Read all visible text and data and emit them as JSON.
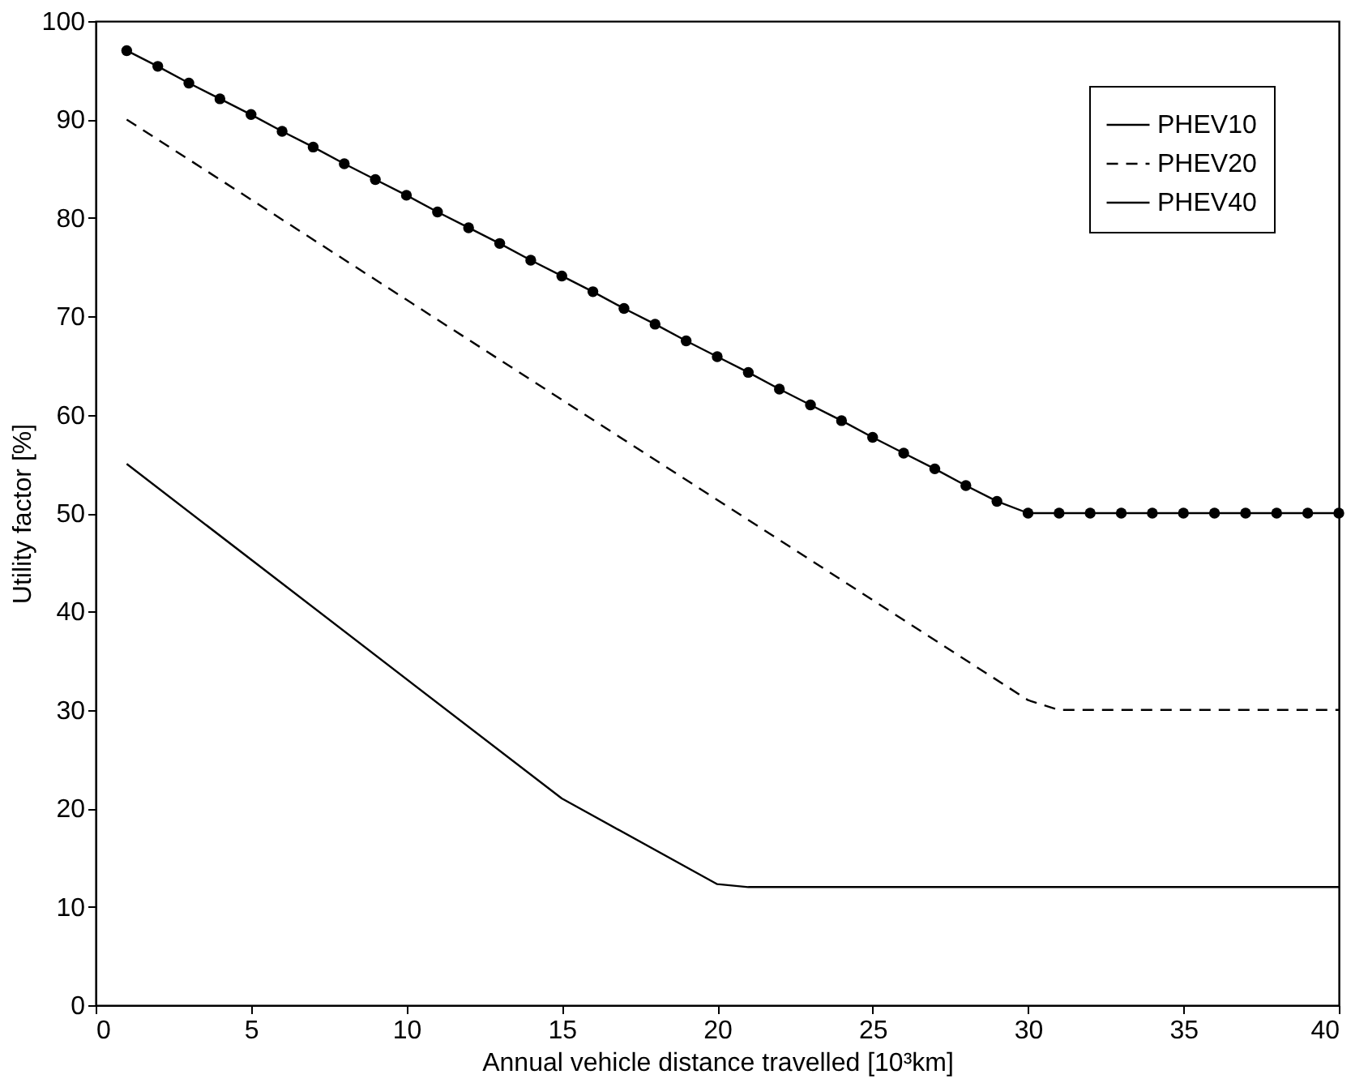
{
  "chart_data": {
    "type": "line",
    "xlabel": "Annual vehicle distance travelled [10³km]",
    "ylabel": "Utility factor [%]",
    "xlim": [
      0,
      40
    ],
    "xticks": [
      0,
      5,
      10,
      15,
      20,
      25,
      30,
      35,
      40
    ],
    "ylim": [
      0,
      100
    ],
    "yticks": [
      0,
      10,
      20,
      30,
      40,
      50,
      60,
      70,
      80,
      90,
      100
    ],
    "grid": false,
    "legend": "top right",
    "series": [
      {
        "name": "PHEV10",
        "color": "#000000",
        "line_style": "solid",
        "marker": "none",
        "x": [
          1,
          15,
          20,
          21,
          40
        ],
        "values": [
          55,
          21,
          12.3,
          12,
          12
        ]
      },
      {
        "name": "PHEV20",
        "color": "#000000",
        "line_style": "dashed",
        "marker": "none",
        "x": [
          1,
          30,
          31,
          40
        ],
        "values": [
          90,
          31,
          30,
          30
        ]
      },
      {
        "name": "PHEV40",
        "color": "#000000",
        "line_style": "solid",
        "marker": "circle",
        "x": [
          1,
          2,
          3,
          4,
          5,
          6,
          7,
          8,
          9,
          10,
          11,
          12,
          13,
          14,
          15,
          16,
          17,
          18,
          19,
          20,
          21,
          22,
          23,
          24,
          25,
          26,
          27,
          28,
          29,
          30,
          31,
          32,
          33,
          34,
          35,
          36,
          37,
          38,
          39,
          40
        ],
        "values": [
          97,
          95.4,
          93.7,
          92.1,
          90.5,
          88.8,
          87.2,
          85.5,
          83.9,
          82.3,
          80.6,
          79.0,
          77.4,
          75.7,
          74.1,
          72.5,
          70.8,
          69.2,
          67.5,
          65.9,
          64.3,
          62.6,
          61.0,
          59.4,
          57.7,
          56.1,
          54.5,
          52.8,
          51.2,
          50,
          50,
          50,
          50,
          50,
          50,
          50,
          50,
          50,
          50,
          50
        ]
      }
    ]
  }
}
